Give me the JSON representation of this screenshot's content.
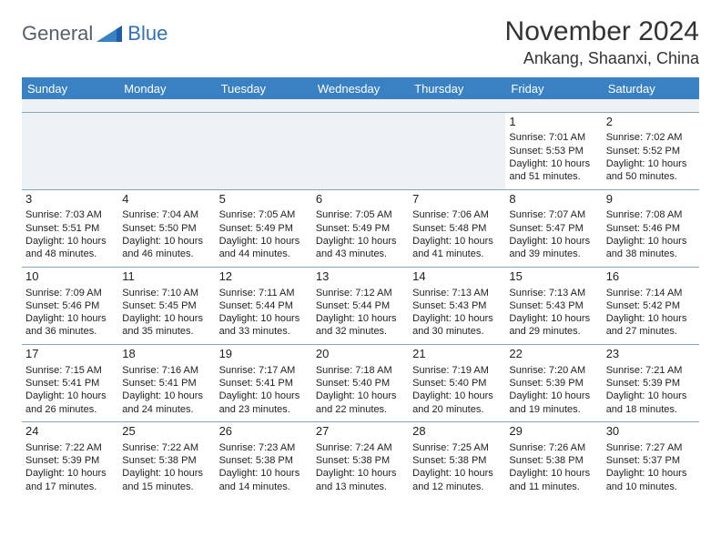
{
  "logo": {
    "general": "General",
    "blue": "Blue"
  },
  "title": "November 2024",
  "location": "Ankang, Shaanxi, China",
  "colors": {
    "header_bg": "#3a81c4",
    "header_fg": "#ffffff",
    "border": "#8aa6bd",
    "empty_bg": "#eef1f4",
    "text": "#222222",
    "logo_general": "#55606a",
    "logo_blue": "#2f72b6"
  },
  "day_headers": [
    "Sunday",
    "Monday",
    "Tuesday",
    "Wednesday",
    "Thursday",
    "Friday",
    "Saturday"
  ],
  "weeks": [
    [
      null,
      null,
      null,
      null,
      null,
      {
        "n": "1",
        "sunrise": "7:01 AM",
        "sunset": "5:53 PM",
        "daylight": "10 hours and 51 minutes."
      },
      {
        "n": "2",
        "sunrise": "7:02 AM",
        "sunset": "5:52 PM",
        "daylight": "10 hours and 50 minutes."
      }
    ],
    [
      {
        "n": "3",
        "sunrise": "7:03 AM",
        "sunset": "5:51 PM",
        "daylight": "10 hours and 48 minutes."
      },
      {
        "n": "4",
        "sunrise": "7:04 AM",
        "sunset": "5:50 PM",
        "daylight": "10 hours and 46 minutes."
      },
      {
        "n": "5",
        "sunrise": "7:05 AM",
        "sunset": "5:49 PM",
        "daylight": "10 hours and 44 minutes."
      },
      {
        "n": "6",
        "sunrise": "7:05 AM",
        "sunset": "5:49 PM",
        "daylight": "10 hours and 43 minutes."
      },
      {
        "n": "7",
        "sunrise": "7:06 AM",
        "sunset": "5:48 PM",
        "daylight": "10 hours and 41 minutes."
      },
      {
        "n": "8",
        "sunrise": "7:07 AM",
        "sunset": "5:47 PM",
        "daylight": "10 hours and 39 minutes."
      },
      {
        "n": "9",
        "sunrise": "7:08 AM",
        "sunset": "5:46 PM",
        "daylight": "10 hours and 38 minutes."
      }
    ],
    [
      {
        "n": "10",
        "sunrise": "7:09 AM",
        "sunset": "5:46 PM",
        "daylight": "10 hours and 36 minutes."
      },
      {
        "n": "11",
        "sunrise": "7:10 AM",
        "sunset": "5:45 PM",
        "daylight": "10 hours and 35 minutes."
      },
      {
        "n": "12",
        "sunrise": "7:11 AM",
        "sunset": "5:44 PM",
        "daylight": "10 hours and 33 minutes."
      },
      {
        "n": "13",
        "sunrise": "7:12 AM",
        "sunset": "5:44 PM",
        "daylight": "10 hours and 32 minutes."
      },
      {
        "n": "14",
        "sunrise": "7:13 AM",
        "sunset": "5:43 PM",
        "daylight": "10 hours and 30 minutes."
      },
      {
        "n": "15",
        "sunrise": "7:13 AM",
        "sunset": "5:43 PM",
        "daylight": "10 hours and 29 minutes."
      },
      {
        "n": "16",
        "sunrise": "7:14 AM",
        "sunset": "5:42 PM",
        "daylight": "10 hours and 27 minutes."
      }
    ],
    [
      {
        "n": "17",
        "sunrise": "7:15 AM",
        "sunset": "5:41 PM",
        "daylight": "10 hours and 26 minutes."
      },
      {
        "n": "18",
        "sunrise": "7:16 AM",
        "sunset": "5:41 PM",
        "daylight": "10 hours and 24 minutes."
      },
      {
        "n": "19",
        "sunrise": "7:17 AM",
        "sunset": "5:41 PM",
        "daylight": "10 hours and 23 minutes."
      },
      {
        "n": "20",
        "sunrise": "7:18 AM",
        "sunset": "5:40 PM",
        "daylight": "10 hours and 22 minutes."
      },
      {
        "n": "21",
        "sunrise": "7:19 AM",
        "sunset": "5:40 PM",
        "daylight": "10 hours and 20 minutes."
      },
      {
        "n": "22",
        "sunrise": "7:20 AM",
        "sunset": "5:39 PM",
        "daylight": "10 hours and 19 minutes."
      },
      {
        "n": "23",
        "sunrise": "7:21 AM",
        "sunset": "5:39 PM",
        "daylight": "10 hours and 18 minutes."
      }
    ],
    [
      {
        "n": "24",
        "sunrise": "7:22 AM",
        "sunset": "5:39 PM",
        "daylight": "10 hours and 17 minutes."
      },
      {
        "n": "25",
        "sunrise": "7:22 AM",
        "sunset": "5:38 PM",
        "daylight": "10 hours and 15 minutes."
      },
      {
        "n": "26",
        "sunrise": "7:23 AM",
        "sunset": "5:38 PM",
        "daylight": "10 hours and 14 minutes."
      },
      {
        "n": "27",
        "sunrise": "7:24 AM",
        "sunset": "5:38 PM",
        "daylight": "10 hours and 13 minutes."
      },
      {
        "n": "28",
        "sunrise": "7:25 AM",
        "sunset": "5:38 PM",
        "daylight": "10 hours and 12 minutes."
      },
      {
        "n": "29",
        "sunrise": "7:26 AM",
        "sunset": "5:38 PM",
        "daylight": "10 hours and 11 minutes."
      },
      {
        "n": "30",
        "sunrise": "7:27 AM",
        "sunset": "5:37 PM",
        "daylight": "10 hours and 10 minutes."
      }
    ]
  ],
  "labels": {
    "sunrise": "Sunrise: ",
    "sunset": "Sunset: ",
    "daylight": "Daylight: "
  }
}
